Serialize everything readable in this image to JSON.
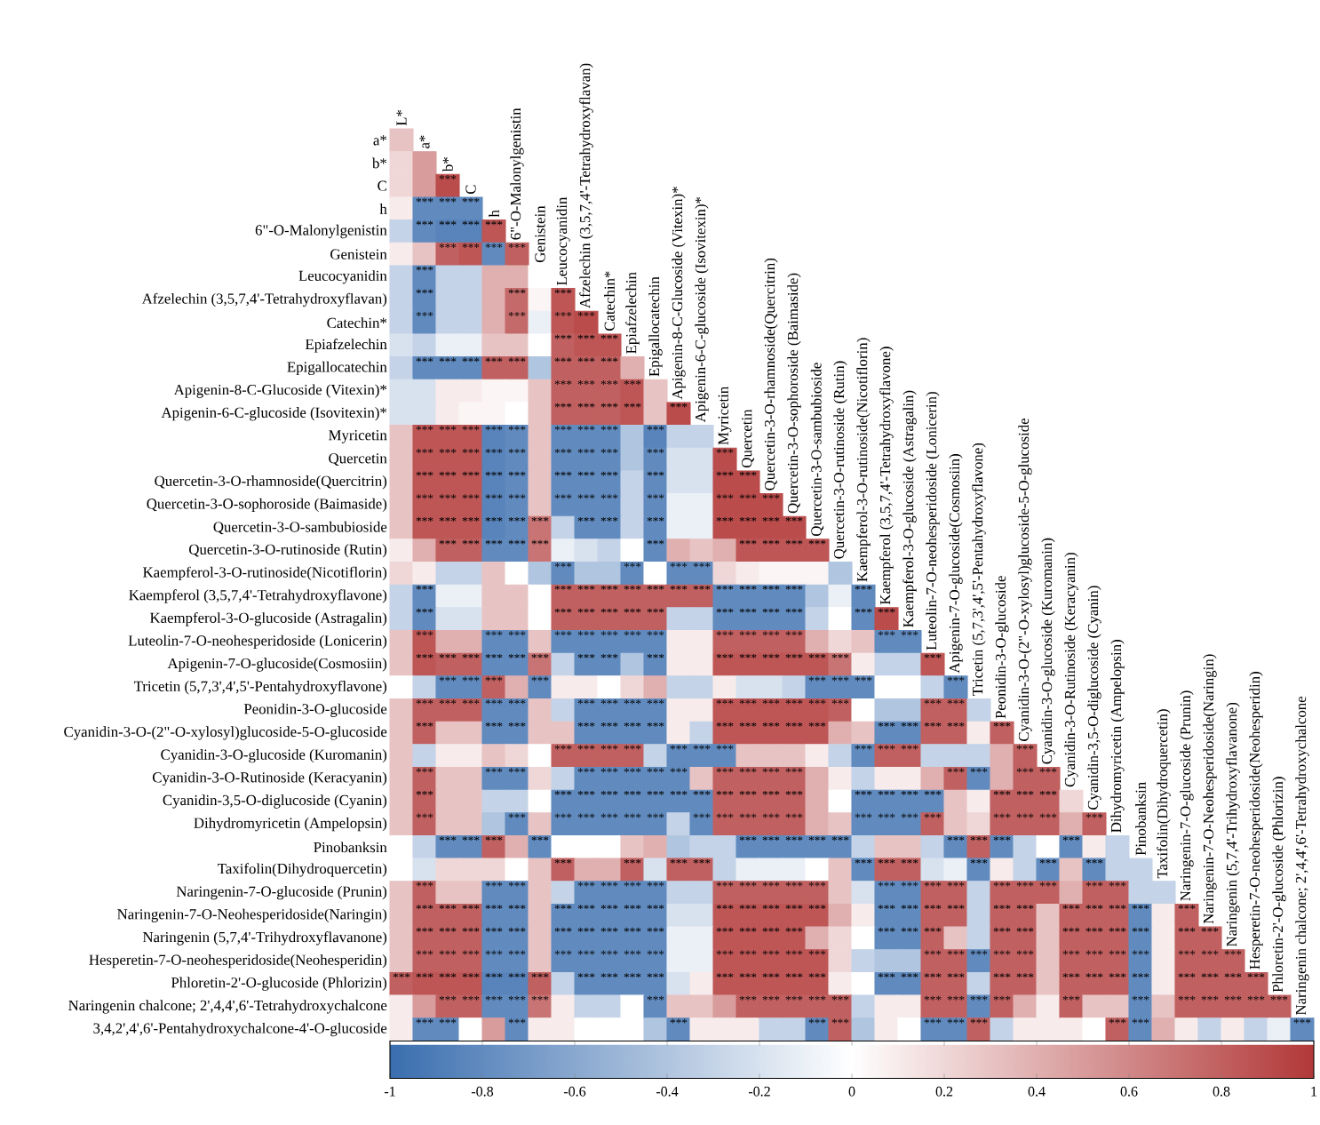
{
  "chart_data": {
    "type": "heatmap",
    "categories": [
      "L*",
      "a*",
      "b*",
      "C",
      "h",
      "6\"-O-Malonylgenistin",
      "Genistein",
      "Leucocyanidin",
      "Afzelechin (3,5,7,4'-Tetrahydroxyflavan)",
      "Catechin*",
      "Epiafzelechin",
      "Epigallocatechin",
      "Apigenin-8-C-Glucoside (Vitexin)*",
      "Apigenin-6-C-glucoside (Isovitexin)*",
      "Myricetin",
      "Quercetin",
      "Quercetin-3-O-rhamnoside(Quercitrin)",
      "Quercetin-3-O-sophoroside (Baimaside)",
      "Quercetin-3-O-sambubioside",
      "Quercetin-3-O-rutinoside (Rutin)",
      "Kaempferol-3-O-rutinoside(Nicotiflorin)",
      "Kaempferol (3,5,7,4'-Tetrahydroxyflavone)",
      "Kaempferol-3-O-glucoside (Astragalin)",
      "Luteolin-7-O-neohesperidoside (Lonicerin)",
      "Apigenin-7-O-glucoside(Cosmosiin)",
      "Tricetin (5,7,3',4',5'-Pentahydroxyflavone)",
      "Peonidin-3-O-glucoside",
      "Cyanidin-3-O-(2\"-O-xylosyl)glucoside-5-O-glucoside",
      "Cyanidin-3-O-glucoside (Kuromanin)",
      "Cyanidin-3-O-Rutinoside (Keracyanin)",
      "Cyanidin-3,5-O-diglucoside (Cyanin)",
      "Dihydromyricetin (Ampelopsin)",
      "Pinobanksin",
      "Taxifolin(Dihydroquercetin)",
      "Naringenin-7-O-glucoside (Prunin)",
      "Naringenin-7-O-Neohesperidoside(Naringin)",
      "Naringenin (5,7,4'-Trihydroxyflavanone)",
      "Hesperetin-7-O-neohesperidoside(Neohesperidin)",
      "Phloretin-2'-O-glucoside (Phlorizin)",
      "Naringenin chalcone; 2',4,4',6'-Tetrahydroxychalcone"
    ],
    "y_categories": [
      "a*",
      "b*",
      "C",
      "h",
      "6\"-O-Malonylgenistin",
      "Genistein",
      "Leucocyanidin",
      "Afzelechin (3,5,7,4'-Tetrahydroxyflavan)",
      "Catechin*",
      "Epiafzelechin",
      "Epigallocatechin",
      "Apigenin-8-C-Glucoside (Vitexin)*",
      "Apigenin-6-C-glucoside (Isovitexin)*",
      "Myricetin",
      "Quercetin",
      "Quercetin-3-O-rhamnoside(Quercitrin)",
      "Quercetin-3-O-sophoroside (Baimaside)",
      "Quercetin-3-O-sambubioside",
      "Quercetin-3-O-rutinoside (Rutin)",
      "Kaempferol-3-O-rutinoside(Nicotiflorin)",
      "Kaempferol (3,5,7,4'-Tetrahydroxyflavone)",
      "Kaempferol-3-O-glucoside (Astragalin)",
      "Luteolin-7-O-neohesperidoside (Lonicerin)",
      "Apigenin-7-O-glucoside(Cosmosiin)",
      "Tricetin (5,7,3',4',5'-Pentahydroxyflavone)",
      "Peonidin-3-O-glucoside",
      "Cyanidin-3-O-(2\"-O-xylosyl)glucoside-5-O-glucoside",
      "Cyanidin-3-O-glucoside (Kuromanin)",
      "Cyanidin-3-O-Rutinoside (Keracyanin)",
      "Cyanidin-3,5-O-diglucoside (Cyanin)",
      "Dihydromyricetin (Ampelopsin)",
      "Pinobanksin",
      "Taxifolin(Dihydroquercetin)",
      "Naringenin-7-O-glucoside (Prunin)",
      "Naringenin-7-O-Neohesperidoside(Naringin)",
      "Naringenin (5,7,4'-Trihydroxyflavanone)",
      "Hesperetin-7-O-neohesperidoside(Neohesperidin)",
      "Phloretin-2'-O-glucoside (Phlorizin)",
      "Naringenin chalcone; 2',4,4',6'-Tetrahydroxychalcone",
      "3,4,2',4',6'-Pentahydroxychalcone-4'-O-glucoside"
    ],
    "cells": [
      [
        0.3,
        null,
        null,
        null,
        null,
        null,
        null,
        null,
        null,
        null,
        null,
        null,
        null,
        null,
        null,
        null,
        null,
        null,
        null,
        null,
        null,
        null,
        null,
        null,
        null,
        null,
        null,
        null,
        null,
        null,
        null,
        null,
        null,
        null,
        null,
        null,
        null,
        null,
        null,
        null
      ],
      [
        0.2,
        0.5,
        null,
        null,
        null,
        null,
        null,
        null,
        null,
        null,
        null,
        null,
        null,
        null,
        null,
        null,
        null,
        null,
        null,
        null,
        null,
        null,
        null,
        null,
        null,
        null,
        null,
        null,
        null,
        null,
        null,
        null,
        null,
        null,
        null,
        null,
        null,
        null,
        null,
        null
      ],
      [
        0.2,
        0.5,
        0.9,
        null,
        null,
        null,
        null,
        null,
        null,
        null,
        null,
        null,
        null,
        null,
        null,
        null,
        null,
        null,
        null,
        null,
        null,
        null,
        null,
        null,
        null,
        null,
        null,
        null,
        null,
        null,
        null,
        null,
        null,
        null,
        null,
        null,
        null,
        null,
        null,
        null
      ],
      [
        0.1,
        -0.8,
        -0.8,
        -0.8,
        null,
        null,
        null,
        null,
        null,
        null,
        null,
        null,
        null,
        null,
        null,
        null,
        null,
        null,
        null,
        null,
        null,
        null,
        null,
        null,
        null,
        null,
        null,
        null,
        null,
        null,
        null,
        null,
        null,
        null,
        null,
        null,
        null,
        null,
        null,
        null
      ],
      [
        -0.3,
        -0.8,
        -0.85,
        -0.85,
        0.85,
        null,
        null,
        null,
        null,
        null,
        null,
        null,
        null,
        null,
        null,
        null,
        null,
        null,
        null,
        null,
        null,
        null,
        null,
        null,
        null,
        null,
        null,
        null,
        null,
        null,
        null,
        null,
        null,
        null,
        null,
        null,
        null,
        null,
        null,
        null
      ],
      [
        0.1,
        0.3,
        0.8,
        0.85,
        -0.8,
        0.8,
        null,
        null,
        null,
        null,
        null,
        null,
        null,
        null,
        null,
        null,
        null,
        null,
        null,
        null,
        null,
        null,
        null,
        null,
        null,
        null,
        null,
        null,
        null,
        null,
        null,
        null,
        null,
        null,
        null,
        null,
        null,
        null,
        null,
        null
      ],
      [
        -0.3,
        -0.8,
        -0.3,
        -0.3,
        0.4,
        0.4,
        0,
        null,
        null,
        null,
        null,
        null,
        null,
        null,
        null,
        null,
        null,
        null,
        null,
        null,
        null,
        null,
        null,
        null,
        null,
        null,
        null,
        null,
        null,
        null,
        null,
        null,
        null,
        null,
        null,
        null,
        null,
        null,
        null,
        null
      ],
      [
        -0.3,
        -0.8,
        -0.3,
        -0.3,
        0.4,
        0.75,
        0.05,
        0.85,
        null,
        null,
        null,
        null,
        null,
        null,
        null,
        null,
        null,
        null,
        null,
        null,
        null,
        null,
        null,
        null,
        null,
        null,
        null,
        null,
        null,
        null,
        null,
        null,
        null,
        null,
        null,
        null,
        null,
        null,
        null,
        null
      ],
      [
        -0.3,
        -0.8,
        -0.3,
        -0.3,
        0.4,
        0.75,
        -0.1,
        0.85,
        0.9,
        null,
        null,
        null,
        null,
        null,
        null,
        null,
        null,
        null,
        null,
        null,
        null,
        null,
        null,
        null,
        null,
        null,
        null,
        null,
        null,
        null,
        null,
        null,
        null,
        null,
        null,
        null,
        null,
        null,
        null,
        null
      ],
      [
        -0.2,
        -0.3,
        -0.1,
        -0.1,
        0.3,
        0.3,
        0,
        0.8,
        0.85,
        0.85,
        null,
        null,
        null,
        null,
        null,
        null,
        null,
        null,
        null,
        null,
        null,
        null,
        null,
        null,
        null,
        null,
        null,
        null,
        null,
        null,
        null,
        null,
        null,
        null,
        null,
        null,
        null,
        null,
        null,
        null
      ],
      [
        -0.3,
        -0.8,
        -0.8,
        -0.8,
        0.8,
        0.8,
        -0.4,
        0.8,
        0.8,
        0.8,
        0.4,
        null,
        null,
        null,
        null,
        null,
        null,
        null,
        null,
        null,
        null,
        null,
        null,
        null,
        null,
        null,
        null,
        null,
        null,
        null,
        null,
        null,
        null,
        null,
        null,
        null,
        null,
        null,
        null,
        null
      ],
      [
        -0.2,
        -0.2,
        0.1,
        0.1,
        0.05,
        0.05,
        0.3,
        0.8,
        0.8,
        0.8,
        0.85,
        0.3,
        null,
        null,
        null,
        null,
        null,
        null,
        null,
        null,
        null,
        null,
        null,
        null,
        null,
        null,
        null,
        null,
        null,
        null,
        null,
        null,
        null,
        null,
        null,
        null,
        null,
        null,
        null,
        null
      ],
      [
        -0.2,
        -0.2,
        0.1,
        0.05,
        0.05,
        0,
        0.3,
        0.8,
        0.8,
        0.8,
        0.85,
        0.3,
        0.9,
        null,
        null,
        null,
        null,
        null,
        null,
        null,
        null,
        null,
        null,
        null,
        null,
        null,
        null,
        null,
        null,
        null,
        null,
        null,
        null,
        null,
        null,
        null,
        null,
        null,
        null,
        null
      ],
      [
        0.3,
        0.85,
        0.85,
        0.85,
        -0.85,
        -0.8,
        0.3,
        -0.8,
        -0.8,
        -0.8,
        -0.4,
        -0.85,
        -0.3,
        -0.3,
        null,
        null,
        null,
        null,
        null,
        null,
        null,
        null,
        null,
        null,
        null,
        null,
        null,
        null,
        null,
        null,
        null,
        null,
        null,
        null,
        null,
        null,
        null,
        null,
        null,
        null
      ],
      [
        0.3,
        0.85,
        0.85,
        0.85,
        -0.85,
        -0.8,
        0.3,
        -0.8,
        -0.8,
        -0.8,
        -0.4,
        -0.8,
        -0.2,
        -0.2,
        0.9,
        null,
        null,
        null,
        null,
        null,
        null,
        null,
        null,
        null,
        null,
        null,
        null,
        null,
        null,
        null,
        null,
        null,
        null,
        null,
        null,
        null,
        null,
        null,
        null,
        null
      ],
      [
        0.3,
        0.85,
        0.85,
        0.85,
        -0.85,
        -0.8,
        0.3,
        -0.8,
        -0.8,
        -0.8,
        -0.3,
        -0.8,
        -0.2,
        -0.2,
        0.9,
        0.9,
        null,
        null,
        null,
        null,
        null,
        null,
        null,
        null,
        null,
        null,
        null,
        null,
        null,
        null,
        null,
        null,
        null,
        null,
        null,
        null,
        null,
        null,
        null,
        null
      ],
      [
        0.3,
        0.85,
        0.85,
        0.85,
        -0.85,
        -0.8,
        0.3,
        -0.8,
        -0.8,
        -0.8,
        -0.3,
        -0.8,
        -0.1,
        -0.1,
        0.9,
        0.9,
        0.9,
        null,
        null,
        null,
        null,
        null,
        null,
        null,
        null,
        null,
        null,
        null,
        null,
        null,
        null,
        null,
        null,
        null,
        null,
        null,
        null,
        null,
        null,
        null
      ],
      [
        0.3,
        0.85,
        0.85,
        0.85,
        -0.85,
        -0.8,
        0.7,
        -0.3,
        -0.8,
        -0.8,
        -0.3,
        -0.8,
        -0.1,
        -0.1,
        0.9,
        0.9,
        0.9,
        0.9,
        null,
        null,
        null,
        null,
        null,
        null,
        null,
        null,
        null,
        null,
        null,
        null,
        null,
        null,
        null,
        null,
        null,
        null,
        null,
        null,
        null,
        null
      ],
      [
        0.1,
        0.4,
        0.8,
        0.8,
        -0.8,
        -0.8,
        0.7,
        -0.1,
        -0.2,
        -0.3,
        0,
        -0.8,
        0.4,
        0.3,
        0.4,
        0.85,
        0.85,
        0.85,
        0.85,
        null,
        null,
        null,
        null,
        null,
        null,
        null,
        null,
        null,
        null,
        null,
        null,
        null,
        null,
        null,
        null,
        null,
        null,
        null,
        null,
        null
      ],
      [
        0.2,
        0.1,
        -0.3,
        -0.3,
        0.3,
        0,
        -0.4,
        -0.8,
        -0.4,
        -0.4,
        -0.8,
        0,
        -0.8,
        -0.8,
        0.2,
        0.1,
        0.05,
        0.05,
        0.05,
        -0.4,
        null,
        null,
        null,
        null,
        null,
        null,
        null,
        null,
        null,
        null,
        null,
        null,
        null,
        null,
        null,
        null,
        null,
        null,
        null,
        null
      ],
      [
        -0.3,
        -0.8,
        -0.1,
        -0.1,
        0.3,
        0.3,
        0,
        0.8,
        0.8,
        0.8,
        0.8,
        0.8,
        0.8,
        0.8,
        -0.8,
        -0.8,
        -0.8,
        -0.8,
        -0.4,
        -0.1,
        -0.8,
        null,
        null,
        null,
        null,
        null,
        null,
        null,
        null,
        null,
        null,
        null,
        null,
        null,
        null,
        null,
        null,
        null,
        null,
        null
      ],
      [
        -0.3,
        -0.8,
        -0.2,
        -0.2,
        0.3,
        0.3,
        0,
        0.8,
        0.8,
        0.8,
        0.8,
        0.8,
        -0.3,
        -0.3,
        -0.8,
        -0.8,
        -0.8,
        -0.8,
        -0.3,
        0,
        -0.8,
        0.9,
        null,
        null,
        null,
        null,
        null,
        null,
        null,
        null,
        null,
        null,
        null,
        null,
        null,
        null,
        null,
        null,
        null,
        null
      ],
      [
        0.3,
        0.85,
        0.4,
        0.4,
        -0.8,
        -0.8,
        0.3,
        -0.8,
        -0.8,
        -0.8,
        -0.8,
        -0.8,
        0.1,
        0.1,
        0.8,
        0.8,
        0.8,
        0.8,
        0.4,
        0.2,
        0.3,
        -0.8,
        -0.8,
        null,
        null,
        null,
        null,
        null,
        null,
        null,
        null,
        null,
        null,
        null,
        null,
        null,
        null,
        null,
        null,
        null
      ],
      [
        0.3,
        0.85,
        0.8,
        0.8,
        -0.8,
        -0.8,
        0.7,
        -0.3,
        -0.8,
        -0.8,
        -0.4,
        -0.8,
        0.1,
        0.1,
        0.85,
        0.85,
        0.85,
        0.85,
        0.85,
        0.7,
        0.1,
        -0.3,
        -0.3,
        0.85,
        null,
        null,
        null,
        null,
        null,
        null,
        null,
        null,
        null,
        null,
        null,
        null,
        null,
        null,
        null,
        null
      ],
      [
        0,
        -0.3,
        -0.8,
        -0.8,
        0.8,
        0.4,
        -0.8,
        0.1,
        0.1,
        0,
        0.2,
        0.4,
        -0.3,
        -0.3,
        0.1,
        -0.2,
        -0.2,
        -0.3,
        -0.8,
        -0.8,
        -0.8,
        0,
        0,
        -0.3,
        -0.8,
        null,
        null,
        null,
        null,
        null,
        null,
        null,
        null,
        null,
        null,
        null,
        null,
        null,
        null,
        null
      ],
      [
        0.3,
        0.8,
        0.8,
        0.8,
        -0.8,
        -0.8,
        0.3,
        -0.3,
        -0.8,
        -0.8,
        -0.8,
        -0.8,
        0.1,
        0.1,
        0.85,
        0.85,
        0.85,
        0.85,
        0.85,
        0.8,
        0,
        -0.4,
        -0.4,
        0.8,
        0.8,
        -0.3,
        null,
        null,
        null,
        null,
        null,
        null,
        null,
        null,
        null,
        null,
        null,
        null,
        null,
        null
      ],
      [
        0.3,
        0.8,
        0.3,
        0.3,
        -0.8,
        -0.8,
        0.3,
        0.3,
        -0.8,
        -0.8,
        -0.8,
        -0.8,
        0.1,
        -0.3,
        0.85,
        0.85,
        0.85,
        0.85,
        0.85,
        0.4,
        0.3,
        -0.8,
        -0.8,
        0.8,
        0.8,
        0.1,
        0.8,
        null,
        null,
        null,
        null,
        null,
        null,
        null,
        null,
        null,
        null,
        null,
        null,
        null
      ],
      [
        0.3,
        -0.3,
        0.1,
        0.1,
        0.3,
        0.2,
        0,
        0.8,
        0.8,
        0.8,
        0.8,
        -0.3,
        -0.8,
        -0.8,
        -0.8,
        0.3,
        0.3,
        0.3,
        0.1,
        -0.3,
        -0.8,
        0.8,
        0.8,
        -0.3,
        -0.3,
        -0.3,
        0.4,
        0.8,
        null,
        null,
        null,
        null,
        null,
        null,
        null,
        null,
        null,
        null,
        null,
        null
      ],
      [
        0.3,
        0.8,
        0.3,
        0.3,
        -0.8,
        -0.8,
        0.2,
        -0.3,
        -0.8,
        -0.8,
        -0.8,
        -0.8,
        -0.8,
        0.3,
        0.8,
        0.8,
        0.8,
        0.8,
        0.4,
        0.1,
        -0.3,
        0.1,
        0.1,
        0.4,
        0.8,
        -0.8,
        0.4,
        0.8,
        0.8,
        null,
        null,
        null,
        null,
        null,
        null,
        null,
        null,
        null,
        null,
        null
      ],
      [
        0.3,
        0.8,
        0.3,
        0.3,
        -0.3,
        -0.3,
        0,
        -0.8,
        -0.8,
        -0.8,
        -0.8,
        -0.8,
        -0.8,
        -0.8,
        0.8,
        0.8,
        0.8,
        0.8,
        0.4,
        0,
        -0.8,
        -0.8,
        -0.8,
        -0.8,
        0.3,
        0.1,
        0.8,
        0.8,
        0.8,
        0.2,
        null,
        null,
        null,
        null,
        null,
        null,
        null,
        null,
        null,
        null
      ],
      [
        0.3,
        0.8,
        0.3,
        0.3,
        -0.4,
        -0.8,
        0.3,
        -0.8,
        -0.8,
        -0.8,
        -0.8,
        -0.8,
        -0.3,
        -0.8,
        0.8,
        0.8,
        0.8,
        0.8,
        0.4,
        0.3,
        -0.8,
        -0.8,
        -0.8,
        0.8,
        0.3,
        0.2,
        0.8,
        0.8,
        0.8,
        0.4,
        0.8,
        null,
        null,
        null,
        null,
        null,
        null,
        null,
        null,
        null
      ],
      [
        0,
        -0.3,
        -0.8,
        -0.8,
        0.8,
        0.4,
        -0.8,
        0,
        0,
        0,
        0.3,
        0.4,
        -0.4,
        -0.3,
        -0.3,
        -0.8,
        -0.8,
        -0.8,
        -0.8,
        -0.8,
        -0.3,
        0.3,
        0.3,
        -0.3,
        -0.8,
        0.8,
        -0.8,
        -0.3,
        0,
        -0.8,
        0.1,
        -0.3,
        null,
        null,
        null,
        null,
        null,
        null,
        null,
        null
      ],
      [
        0,
        -0.2,
        0.2,
        0.2,
        0.2,
        0,
        0.3,
        0.8,
        0.4,
        0.4,
        0.8,
        -0.2,
        0.8,
        0.8,
        -0.3,
        -0.1,
        -0.1,
        -0.1,
        0,
        0.3,
        -0.8,
        0.8,
        0.8,
        -0.2,
        -0.1,
        -0.8,
        0.1,
        -0.3,
        -0.8,
        0.3,
        -0.8,
        -0.3,
        -0.3,
        null,
        null,
        null,
        null,
        null,
        null,
        null
      ],
      [
        0.3,
        0.8,
        0.3,
        0.3,
        -0.8,
        -0.8,
        0.3,
        -0.3,
        -0.8,
        -0.8,
        -0.8,
        -0.8,
        -0.3,
        -0.3,
        0.8,
        0.8,
        0.8,
        0.8,
        0.8,
        0.3,
        -0.2,
        -0.8,
        -0.8,
        0.8,
        0.8,
        -0.3,
        0.8,
        0.8,
        0.8,
        0.4,
        0.8,
        0.8,
        -0.3,
        -0.3,
        null,
        null,
        null,
        null,
        null,
        null
      ],
      [
        0.3,
        0.8,
        0.8,
        0.8,
        -0.8,
        -0.8,
        0.3,
        -0.8,
        -0.8,
        -0.8,
        -0.8,
        -0.8,
        -0.2,
        -0.2,
        0.85,
        0.85,
        0.85,
        0.85,
        0.85,
        0.4,
        0.1,
        -0.8,
        -0.8,
        0.8,
        0.8,
        -0.3,
        0.8,
        0.8,
        0.3,
        0.8,
        0.8,
        0.8,
        -0.8,
        0.1,
        0.8,
        null,
        null,
        null,
        null,
        null
      ],
      [
        0.3,
        0.8,
        0.8,
        0.8,
        -0.8,
        -0.8,
        0.3,
        -0.8,
        -0.8,
        -0.8,
        -0.8,
        -0.8,
        -0.1,
        -0.1,
        0.85,
        0.85,
        0.85,
        0.85,
        0.4,
        0.2,
        0,
        -0.8,
        -0.8,
        0.8,
        0.3,
        -0.3,
        0.8,
        0.8,
        0.3,
        0.8,
        0.8,
        0.8,
        -0.8,
        0.1,
        0.8,
        0.8,
        null,
        null,
        null,
        null
      ],
      [
        0.3,
        0.8,
        0.8,
        0.8,
        -0.8,
        -0.8,
        0.3,
        -0.8,
        -0.8,
        -0.8,
        -0.8,
        -0.8,
        -0.1,
        -0.1,
        0.85,
        0.85,
        0.85,
        0.85,
        0.85,
        0.2,
        -0.3,
        -0.4,
        -0.4,
        0.8,
        0.8,
        -0.8,
        0.8,
        0.8,
        0.3,
        0.8,
        0.8,
        0.8,
        -0.8,
        0.1,
        0.8,
        0.8,
        0.8,
        null,
        null,
        null
      ],
      [
        0.8,
        0.85,
        0.85,
        0.85,
        -0.85,
        -0.85,
        0.8,
        -0.3,
        -0.8,
        -0.8,
        -0.8,
        -0.8,
        -0.2,
        0.1,
        0.85,
        0.85,
        0.85,
        0.85,
        0.85,
        0.1,
        0,
        -0.8,
        -0.8,
        0.8,
        0.8,
        -0.3,
        0.8,
        0.8,
        0.3,
        0.8,
        0.8,
        0.8,
        -0.8,
        0.1,
        0.8,
        0.8,
        0.8,
        0.8,
        null,
        null
      ],
      [
        0.1,
        0.5,
        0.8,
        0.8,
        -0.8,
        -0.8,
        0.7,
        0.1,
        -0.3,
        -0.3,
        0,
        -0.8,
        0.3,
        0.3,
        0.5,
        0.8,
        0.8,
        0.8,
        0.8,
        0.8,
        -0.3,
        0.1,
        0.1,
        0.8,
        0.8,
        -0.8,
        0.8,
        0.4,
        0.1,
        0.8,
        0.3,
        0.3,
        -0.8,
        0.3,
        0.8,
        0.8,
        0.8,
        0.8,
        0.8,
        null
      ],
      [
        0.1,
        -0.8,
        -0.8,
        0,
        0.5,
        -0.8,
        0.1,
        0.1,
        0,
        0,
        0,
        -0.4,
        -0.8,
        0.1,
        0.1,
        0.1,
        -0.3,
        -0.3,
        -0.8,
        0.8,
        -0.4,
        0.1,
        0,
        -0.8,
        -0.8,
        0.8,
        -0.3,
        0.1,
        0.1,
        0.1,
        0,
        0.8,
        -0.8,
        0.4,
        0.1,
        -0.3,
        0.1,
        -0.3,
        -0.1,
        -0.8
      ]
    ],
    "cell_labels": [
      [
        null
      ],
      [
        null,
        null
      ],
      [
        null,
        null,
        "***"
      ],
      [
        null,
        "***",
        "***",
        "***"
      ],
      [
        null,
        "***",
        "***",
        "***",
        "***"
      ],
      [
        null,
        null,
        "***",
        "***",
        "***",
        "***"
      ],
      [
        null,
        "***",
        null,
        null,
        null,
        null,
        null
      ],
      [
        null,
        "***",
        null,
        null,
        null,
        "***",
        null,
        "***"
      ],
      [
        null,
        "***",
        null,
        null,
        null,
        "***",
        null,
        "***",
        "***"
      ],
      [
        null,
        null,
        null,
        null,
        null,
        null,
        null,
        "***",
        "***",
        "***"
      ],
      [
        null,
        "***",
        "***",
        "***",
        "***",
        "***",
        null,
        "***",
        "***",
        "***",
        null
      ],
      [
        null,
        null,
        null,
        null,
        null,
        null,
        null,
        "***",
        "***",
        "***",
        "***",
        null
      ],
      [
        null,
        null,
        null,
        null,
        null,
        null,
        null,
        "***",
        "***",
        "***",
        "***",
        null,
        "***"
      ],
      [
        null,
        "***",
        "***",
        "***",
        "***",
        "***",
        null,
        "***",
        "***",
        "***",
        null,
        "***",
        null,
        null
      ],
      [
        null,
        "***",
        "***",
        "***",
        "***",
        "***",
        null,
        "***",
        "***",
        "***",
        null,
        "***",
        null,
        null,
        "***"
      ],
      [
        null,
        "***",
        "***",
        "***",
        "***",
        "***",
        null,
        "***",
        "***",
        "***",
        null,
        "***",
        null,
        null,
        "***",
        "***"
      ],
      [
        null,
        "***",
        "***",
        "***",
        "***",
        "***",
        null,
        "***",
        "***",
        "***",
        null,
        "***",
        null,
        null,
        "***",
        "***",
        "***"
      ],
      [
        null,
        "***",
        "***",
        "***",
        "***",
        "***",
        "***",
        null,
        "***",
        "***",
        null,
        "***",
        null,
        null,
        "***",
        "***",
        "***",
        "***"
      ],
      [
        null,
        null,
        "***",
        "***",
        "***",
        "***",
        "***",
        null,
        null,
        null,
        null,
        "***",
        null,
        null,
        null,
        "***",
        "***",
        "***",
        "***"
      ],
      [
        null,
        null,
        null,
        null,
        null,
        null,
        null,
        "***",
        null,
        null,
        "***",
        null,
        "***",
        "***",
        null,
        null,
        null,
        null,
        null,
        null
      ],
      [
        null,
        "***",
        null,
        null,
        null,
        null,
        null,
        "***",
        "***",
        "***",
        "***",
        "***",
        "***",
        "***",
        "***",
        "***",
        "***",
        "***",
        null,
        null,
        "***"
      ],
      [
        null,
        "***",
        null,
        null,
        null,
        null,
        null,
        "***",
        "***",
        "***",
        "***",
        "***",
        null,
        null,
        "***",
        "***",
        "***",
        "***",
        null,
        null,
        "***",
        "***"
      ],
      [
        null,
        "***",
        null,
        null,
        "***",
        "***",
        null,
        "***",
        "***",
        "***",
        "***",
        "***",
        null,
        null,
        "***",
        "***",
        "***",
        "***",
        null,
        null,
        null,
        "***",
        "***"
      ],
      [
        null,
        "***",
        "***",
        "***",
        "***",
        "***",
        "***",
        null,
        "***",
        "***",
        null,
        "***",
        null,
        null,
        "***",
        "***",
        "***",
        "***",
        "***",
        "***",
        null,
        null,
        null,
        "***"
      ],
      [
        null,
        null,
        "***",
        "***",
        "***",
        null,
        "***",
        null,
        null,
        null,
        null,
        null,
        null,
        null,
        null,
        null,
        null,
        null,
        "***",
        "***",
        "***",
        null,
        null,
        null,
        "***"
      ],
      [
        null,
        "***",
        "***",
        "***",
        "***",
        "***",
        null,
        null,
        "***",
        "***",
        "***",
        "***",
        null,
        null,
        "***",
        "***",
        "***",
        "***",
        "***",
        "***",
        null,
        null,
        null,
        "***",
        "***",
        null
      ],
      [
        null,
        "***",
        null,
        null,
        "***",
        "***",
        null,
        null,
        "***",
        "***",
        "***",
        "***",
        null,
        null,
        "***",
        "***",
        "***",
        "***",
        "***",
        null,
        null,
        "***",
        "***",
        "***",
        "***",
        null,
        "***"
      ],
      [
        null,
        null,
        null,
        null,
        null,
        null,
        null,
        "***",
        "***",
        "***",
        "***",
        null,
        "***",
        "***",
        "***",
        null,
        null,
        null,
        null,
        null,
        "***",
        "***",
        "***",
        null,
        null,
        null,
        null,
        "***"
      ],
      [
        null,
        "***",
        null,
        null,
        "***",
        "***",
        null,
        null,
        "***",
        "***",
        "***",
        "***",
        "***",
        null,
        "***",
        "***",
        "***",
        "***",
        null,
        null,
        null,
        null,
        null,
        null,
        "***",
        "***",
        null,
        "***",
        "***"
      ],
      [
        null,
        "***",
        null,
        null,
        null,
        null,
        null,
        "***",
        "***",
        "***",
        "***",
        "***",
        "***",
        "***",
        "***",
        "***",
        "***",
        "***",
        null,
        null,
        "***",
        "***",
        "***",
        "***",
        null,
        null,
        "***",
        "***",
        "***",
        null
      ],
      [
        null,
        "***",
        null,
        null,
        null,
        "***",
        null,
        "***",
        "***",
        "***",
        "***",
        "***",
        null,
        "***",
        "***",
        "***",
        "***",
        "***",
        null,
        null,
        "***",
        "***",
        "***",
        "***",
        null,
        null,
        "***",
        "***",
        "***",
        null,
        "***"
      ],
      [
        null,
        null,
        "***",
        "***",
        "***",
        null,
        "***",
        null,
        null,
        null,
        null,
        null,
        null,
        null,
        null,
        "***",
        "***",
        "***",
        "***",
        "***",
        null,
        null,
        null,
        null,
        "***",
        "***",
        "***",
        null,
        null,
        "***",
        null,
        null
      ],
      [
        null,
        null,
        null,
        null,
        null,
        null,
        null,
        "***",
        null,
        null,
        "***",
        null,
        "***",
        "***",
        null,
        null,
        null,
        null,
        null,
        null,
        "***",
        "***",
        "***",
        null,
        null,
        "***",
        null,
        null,
        "***",
        null,
        "***",
        null,
        null
      ],
      [
        null,
        "***",
        null,
        null,
        "***",
        "***",
        null,
        null,
        "***",
        "***",
        "***",
        "***",
        null,
        null,
        "***",
        "***",
        "***",
        "***",
        "***",
        null,
        null,
        "***",
        "***",
        "***",
        "***",
        null,
        "***",
        "***",
        "***",
        null,
        "***",
        "***",
        null,
        null
      ],
      [
        null,
        "***",
        "***",
        "***",
        "***",
        "***",
        null,
        "***",
        "***",
        "***",
        "***",
        "***",
        null,
        null,
        "***",
        "***",
        "***",
        "***",
        "***",
        null,
        null,
        "***",
        "***",
        "***",
        "***",
        null,
        "***",
        "***",
        null,
        "***",
        "***",
        "***",
        "***",
        null,
        "***"
      ],
      [
        null,
        "***",
        "***",
        "***",
        "***",
        "***",
        null,
        "***",
        "***",
        "***",
        "***",
        "***",
        null,
        null,
        "***",
        "***",
        "***",
        "***",
        null,
        null,
        null,
        "***",
        "***",
        "***",
        null,
        null,
        "***",
        "***",
        null,
        "***",
        "***",
        "***",
        "***",
        null,
        "***",
        "***"
      ],
      [
        null,
        "***",
        "***",
        "***",
        "***",
        "***",
        null,
        "***",
        "***",
        "***",
        "***",
        "***",
        null,
        null,
        "***",
        "***",
        "***",
        "***",
        "***",
        null,
        null,
        null,
        null,
        "***",
        "***",
        "***",
        "***",
        "***",
        null,
        "***",
        "***",
        "***",
        "***",
        null,
        "***",
        "***",
        "***"
      ],
      [
        "***",
        "***",
        "***",
        "***",
        "***",
        "***",
        "***",
        null,
        "***",
        "***",
        "***",
        "***",
        null,
        null,
        "***",
        "***",
        "***",
        "***",
        "***",
        null,
        null,
        "***",
        "***",
        "***",
        "***",
        null,
        "***",
        "***",
        null,
        "***",
        "***",
        "***",
        "***",
        null,
        "***",
        "***",
        "***",
        "***"
      ],
      [
        null,
        null,
        "***",
        "***",
        "***",
        "***",
        "***",
        null,
        null,
        null,
        null,
        "***",
        null,
        null,
        null,
        "***",
        "***",
        "***",
        "***",
        "***",
        null,
        null,
        null,
        "***",
        "***",
        "***",
        "***",
        null,
        null,
        "***",
        null,
        null,
        "***",
        null,
        "***",
        "***",
        "***",
        "***",
        "***"
      ],
      [
        null,
        "***",
        "***",
        null,
        null,
        "***",
        null,
        null,
        null,
        null,
        null,
        null,
        "***",
        null,
        null,
        null,
        null,
        null,
        "***",
        "***",
        null,
        null,
        null,
        "***",
        "***",
        "***",
        null,
        null,
        null,
        null,
        null,
        "***",
        "***",
        null,
        null,
        null,
        null,
        null,
        null,
        "***"
      ]
    ],
    "clim": [
      -1,
      1
    ],
    "cticks": [
      -1,
      -0.8,
      -0.6,
      -0.4,
      -0.2,
      0,
      0.2,
      0.4,
      0.6,
      0.8,
      1
    ]
  }
}
